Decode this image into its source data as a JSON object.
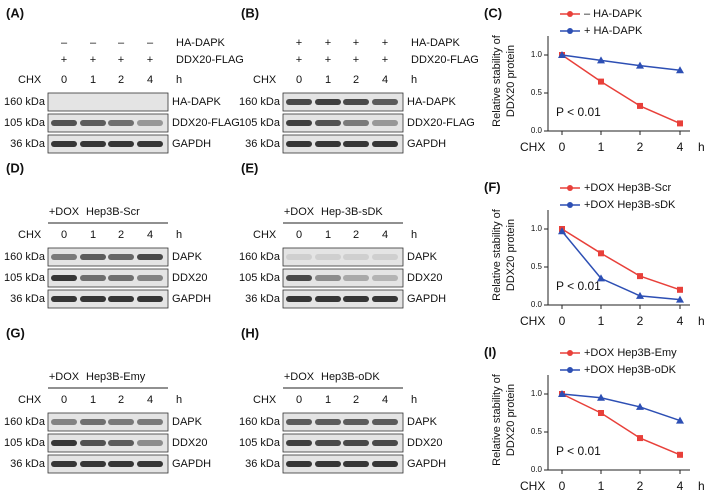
{
  "blots": [
    {
      "label": "(A)",
      "header": [
        {
          "marks": [
            "–",
            "–",
            "–",
            "–"
          ],
          "text": "HA-DAPK"
        },
        {
          "marks": [
            "+",
            "+",
            "+",
            "+"
          ],
          "text": "DDX20-FLAG"
        }
      ],
      "header_title": [],
      "cond": "CHX",
      "times": [
        0,
        1,
        2,
        4
      ],
      "unit": "h",
      "rows": [
        {
          "kda": "160 kDa",
          "protein": "HA-DAPK"
        },
        {
          "kda": "105 kDa",
          "protein": "DDX20-FLAG"
        },
        {
          "kda": "36 kDa",
          "protein": "GAPDH"
        }
      ]
    },
    {
      "label": "(B)",
      "header": [
        {
          "marks": [
            "+",
            "+",
            "+",
            "+"
          ],
          "text": "HA-DAPK"
        },
        {
          "marks": [
            "+",
            "+",
            "+",
            "+"
          ],
          "text": "DDX20-FLAG"
        }
      ],
      "header_title": [],
      "cond": "CHX",
      "times": [
        0,
        1,
        2,
        4
      ],
      "unit": "h",
      "rows": [
        {
          "kda": "160 kDa",
          "protein": "HA-DAPK"
        },
        {
          "kda": "105 kDa",
          "protein": "DDX20-FLAG"
        },
        {
          "kda": "36 kDa",
          "protein": "GAPDH"
        }
      ]
    },
    {
      "label": "(D)",
      "header": [],
      "header_title": [
        "+DOX",
        "Hep3B-Scr"
      ],
      "cond": "CHX",
      "times": [
        0,
        1,
        2,
        4
      ],
      "unit": "h",
      "rows": [
        {
          "kda": "160 kDa",
          "protein": "DAPK"
        },
        {
          "kda": "105 kDa",
          "protein": "DDX20"
        },
        {
          "kda": "36 kDa",
          "protein": "GAPDH"
        }
      ]
    },
    {
      "label": "(E)",
      "header": [],
      "header_title": [
        "+DOX",
        "Hep-3B-sDK"
      ],
      "cond": "CHX",
      "times": [
        0,
        1,
        2,
        4
      ],
      "unit": "h",
      "rows": [
        {
          "kda": "160 kDa",
          "protein": "DAPK"
        },
        {
          "kda": "105 kDa",
          "protein": "DDX20"
        },
        {
          "kda": "36 kDa",
          "protein": "GAPDH"
        }
      ]
    },
    {
      "label": "(G)",
      "header": [],
      "header_title": [
        "+DOX",
        "Hep3B-Emy"
      ],
      "cond": "CHX",
      "times": [
        0,
        1,
        2,
        4
      ],
      "unit": "h",
      "rows": [
        {
          "kda": "160 kDa",
          "protein": "DAPK"
        },
        {
          "kda": "105 kDa",
          "protein": "DDX20"
        },
        {
          "kda": "36 kDa",
          "protein": "GAPDH"
        }
      ]
    },
    {
      "label": "(H)",
      "header": [],
      "header_title": [
        "+DOX",
        "Hep3B-oDK"
      ],
      "cond": "CHX",
      "times": [
        0,
        1,
        2,
        4
      ],
      "unit": "h",
      "rows": [
        {
          "kda": "160 kDa",
          "protein": "DAPK"
        },
        {
          "kda": "105 kDa",
          "protein": "DDX20"
        },
        {
          "kda": "36 kDa",
          "protein": "GAPDH"
        }
      ]
    }
  ],
  "chart_data": [
    {
      "type": "line",
      "label": "(C)",
      "ylabel": [
        "Relative stability of",
        "DDX20 protein"
      ],
      "xlabel": "CHX",
      "xunit": "h",
      "categories": [
        0,
        1,
        2,
        4
      ],
      "ylim": [
        0,
        1.25
      ],
      "yticks": [
        {
          "value": 0,
          "label": "0.0"
        },
        {
          "value": 0.5,
          "label": "0.5"
        },
        {
          "value": 1,
          "label": "1.0"
        }
      ],
      "annotation": "P < 0.01",
      "series": [
        {
          "name": "– HA-DAPK",
          "color": "#e8403a",
          "values": [
            1.0,
            0.65,
            0.33,
            0.1
          ]
        },
        {
          "name": "+ HA-DAPK",
          "color": "#2d4fb4",
          "values": [
            1.0,
            0.93,
            0.86,
            0.8
          ]
        }
      ]
    },
    {
      "type": "line",
      "label": "(F)",
      "ylabel": [
        "Relative stability of",
        "DDX20 protein"
      ],
      "xlabel": "CHX",
      "xunit": "h",
      "categories": [
        0,
        1,
        2,
        4
      ],
      "ylim": [
        0,
        1.25
      ],
      "yticks": [
        {
          "value": 0,
          "label": "0.0"
        },
        {
          "value": 0.5,
          "label": "0.5"
        },
        {
          "value": 1,
          "label": "1.0"
        }
      ],
      "annotation": "P < 0.01",
      "series": [
        {
          "name": "+DOX  Hep3B-Scr",
          "color": "#e8403a",
          "values": [
            1.0,
            0.68,
            0.38,
            0.2
          ]
        },
        {
          "name": "+DOX  Hep3B-sDK",
          "color": "#2d4fb4",
          "values": [
            0.97,
            0.35,
            0.12,
            0.07
          ]
        }
      ]
    },
    {
      "type": "line",
      "label": "(I)",
      "ylabel": [
        "Relative stability of",
        "DDX20 protein"
      ],
      "xlabel": "CHX",
      "xunit": "h",
      "categories": [
        0,
        1,
        2,
        4
      ],
      "ylim": [
        0,
        1.25
      ],
      "yticks": [
        {
          "value": 0,
          "label": "0.0"
        },
        {
          "value": 0.5,
          "label": "0.5"
        },
        {
          "value": 1,
          "label": "1.0"
        }
      ],
      "annotation": "P < 0.01",
      "series": [
        {
          "name": "+DOX  Hep3B-Emy",
          "color": "#e8403a",
          "values": [
            1.0,
            0.75,
            0.42,
            0.2
          ]
        },
        {
          "name": "+DOX  Hep3B-oDK",
          "color": "#2d4fb4",
          "values": [
            1.0,
            0.95,
            0.83,
            0.65
          ]
        }
      ]
    }
  ]
}
